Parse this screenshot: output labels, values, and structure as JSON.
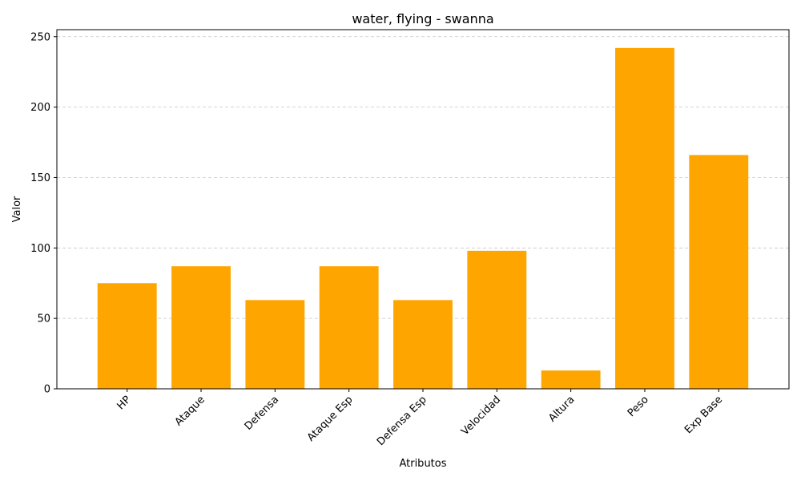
{
  "chart_data": {
    "type": "bar",
    "title": "water, flying - swanna",
    "xlabel": "Atributos",
    "ylabel": "Valor",
    "categories": [
      "HP",
      "Ataque",
      "Defensa",
      "Ataque Esp",
      "Defensa Esp",
      "Velocidad",
      "Altura",
      "Peso",
      "Exp Base"
    ],
    "values": [
      75,
      87,
      63,
      87,
      63,
      98,
      13,
      242,
      166
    ],
    "ylim": [
      0,
      255
    ],
    "yticks": [
      0,
      50,
      100,
      150,
      200,
      250
    ],
    "grid": "y-dashed",
    "bar_color": "#FFA500",
    "xtick_rotation": 45
  }
}
